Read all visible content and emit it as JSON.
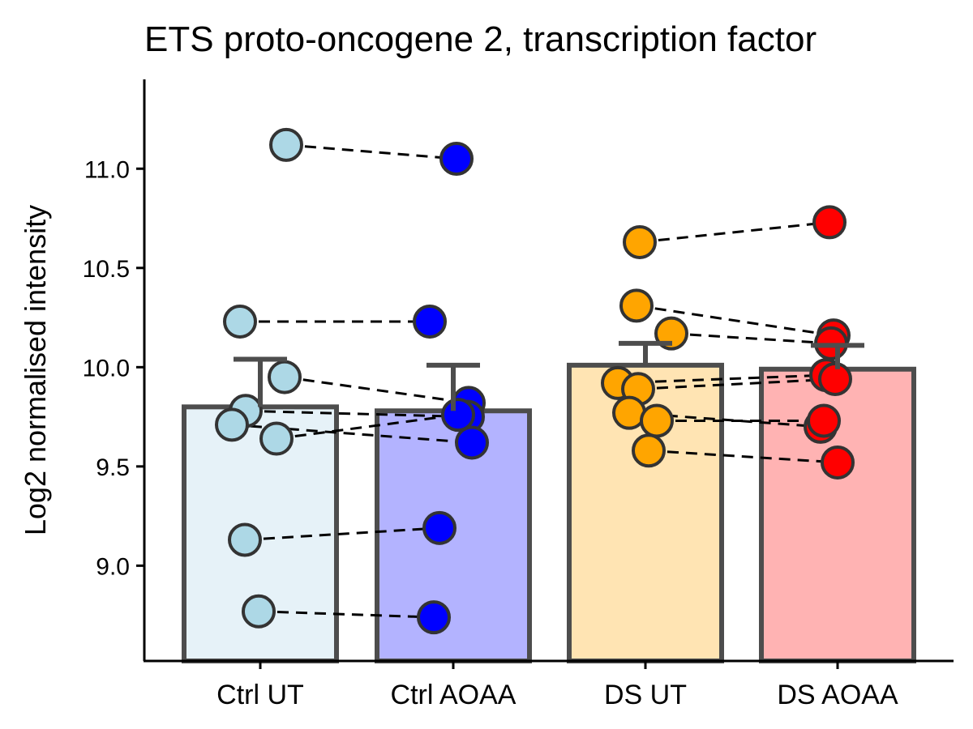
{
  "chart_data": {
    "type": "bar",
    "title": "ETS proto-oncogene 2, transcription factor",
    "xlabel": "",
    "ylabel": "Log2 normalised intensity",
    "ylim": [
      8.52,
      11.45
    ],
    "yticks": [
      9.0,
      9.5,
      10.0,
      10.5,
      11.0
    ],
    "ytick_labels": [
      "9.0",
      "9.5",
      "10.0",
      "10.5",
      "11.0"
    ],
    "grid": false,
    "legend": "none",
    "categories": [
      "Ctrl UT",
      "Ctrl AOAA",
      "DS UT",
      "DS AOAA"
    ],
    "bars": [
      {
        "category": "Ctrl UT",
        "mean": 9.8,
        "error_upper": 10.04,
        "fill": "#e6f2f8",
        "point_color": "#add8e6"
      },
      {
        "category": "Ctrl AOAA",
        "mean": 9.78,
        "error_upper": 10.01,
        "fill": "#b3b3ff",
        "point_color": "#0000ff"
      },
      {
        "category": "DS UT",
        "mean": 10.01,
        "error_upper": 10.12,
        "fill": "#ffe4b3",
        "point_color": "#ffa500"
      },
      {
        "category": "DS AOAA",
        "mean": 9.99,
        "error_upper": 10.11,
        "fill": "#ffb3b3",
        "point_color": "#ff0000"
      }
    ],
    "paired_points": [
      {
        "group": "Ctrl",
        "untreated": 11.12,
        "treated": 11.05
      },
      {
        "group": "Ctrl",
        "untreated": 10.23,
        "treated": 10.23
      },
      {
        "group": "Ctrl",
        "untreated": 9.95,
        "treated": 9.82
      },
      {
        "group": "Ctrl",
        "untreated": 9.78,
        "treated": 9.75
      },
      {
        "group": "Ctrl",
        "untreated": 9.71,
        "treated": 9.62
      },
      {
        "group": "Ctrl",
        "untreated": 9.64,
        "treated": 9.76
      },
      {
        "group": "Ctrl",
        "untreated": 9.13,
        "treated": 9.19
      },
      {
        "group": "Ctrl",
        "untreated": 8.77,
        "treated": 8.74
      },
      {
        "group": "DS",
        "untreated": 10.63,
        "treated": 10.73
      },
      {
        "group": "DS",
        "untreated": 10.31,
        "treated": 10.16
      },
      {
        "group": "DS",
        "untreated": 10.17,
        "treated": 10.12
      },
      {
        "group": "DS",
        "untreated": 9.92,
        "treated": 9.96
      },
      {
        "group": "DS",
        "untreated": 9.89,
        "treated": 9.94
      },
      {
        "group": "DS",
        "untreated": 9.77,
        "treated": 9.7
      },
      {
        "group": "DS",
        "untreated": 9.73,
        "treated": 9.73
      },
      {
        "group": "DS",
        "untreated": 9.58,
        "treated": 9.52
      }
    ]
  }
}
